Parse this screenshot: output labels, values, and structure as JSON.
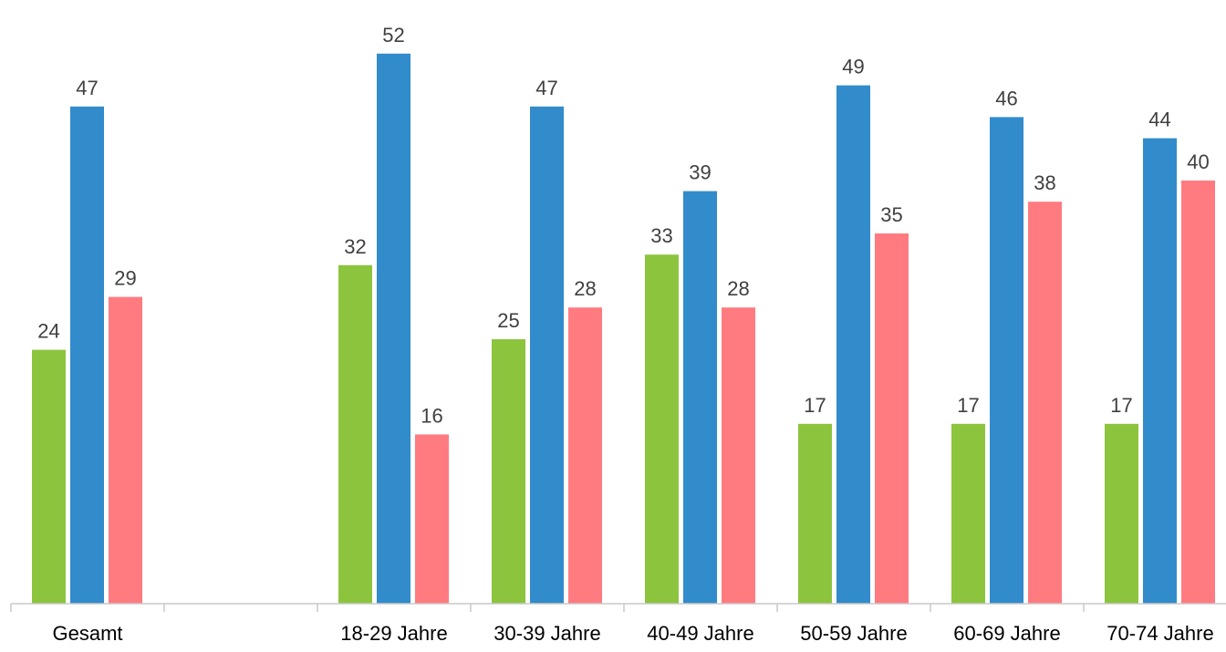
{
  "chart_data": {
    "type": "bar",
    "title": "",
    "xlabel": "",
    "ylabel": "",
    "categories": [
      "Gesamt",
      "",
      "18-29 Jahre",
      "30-39 Jahre",
      "40-49 Jahre",
      "50-59 Jahre",
      "60-69 Jahre",
      "70-74 Jahre"
    ],
    "series": [
      {
        "color": "#8cc43e",
        "values": [
          24,
          null,
          32,
          25,
          33,
          17,
          17,
          17
        ]
      },
      {
        "color": "#328bcb",
        "values": [
          47,
          null,
          52,
          47,
          39,
          49,
          46,
          44
        ]
      },
      {
        "color": "#ff7b80",
        "values": [
          29,
          null,
          16,
          28,
          28,
          35,
          38,
          40
        ]
      }
    ],
    "ylim": [
      0,
      55
    ],
    "grid": false,
    "legend": "none"
  },
  "colors": {
    "axis": "#c8c8c8",
    "label_text": "#404040"
  }
}
